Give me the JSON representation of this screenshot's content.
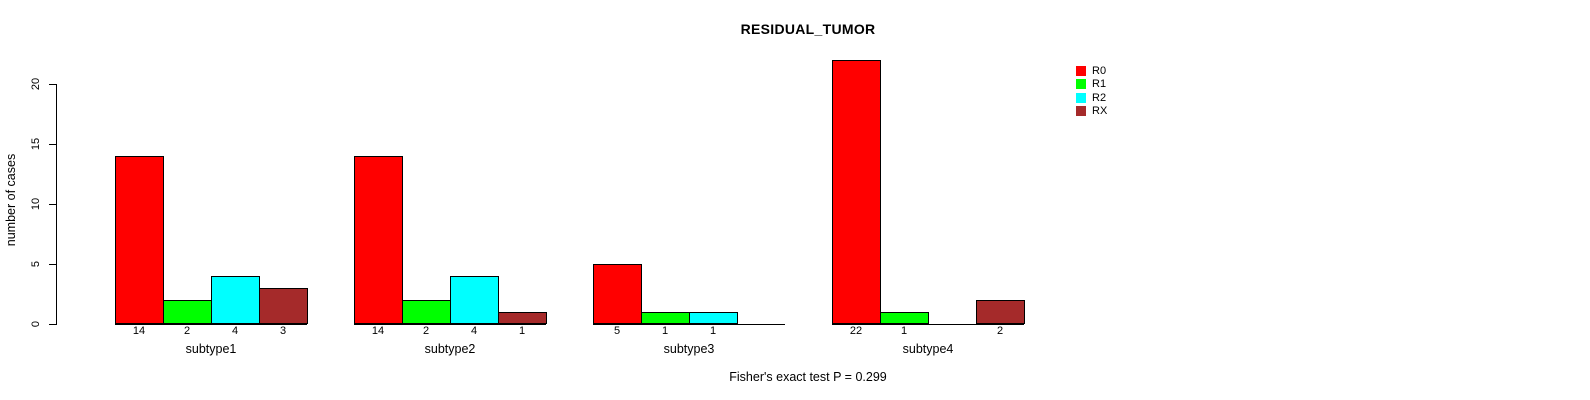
{
  "title": "RESIDUAL_TUMOR",
  "y_axis_title": "number of cases",
  "footer_note": "Fisher's exact test P = 0.299",
  "colors": {
    "R0": "#FF0000",
    "R1": "#00FF00",
    "R2": "#00FFFF",
    "RX": "#A52A2A",
    "axis": "#000000",
    "background": "#FFFFFF"
  },
  "legend": {
    "position": "top-right-inside",
    "items": [
      {
        "label": "R0",
        "color": "#FF0000"
      },
      {
        "label": "R1",
        "color": "#00FF00"
      },
      {
        "label": "R2",
        "color": "#00FFFF"
      },
      {
        "label": "RX",
        "color": "#A52A2A"
      }
    ]
  },
  "chart_data": {
    "type": "bar",
    "title": "RESIDUAL_TUMOR",
    "xlabel": "",
    "ylabel": "number of cases",
    "categories": [
      "subtype1",
      "subtype2",
      "subtype3",
      "subtype4"
    ],
    "series": [
      {
        "name": "R0",
        "color": "#FF0000",
        "values": [
          14,
          14,
          5,
          22
        ]
      },
      {
        "name": "R1",
        "color": "#00FF00",
        "values": [
          2,
          2,
          1,
          1
        ]
      },
      {
        "name": "R2",
        "color": "#00FFFF",
        "values": [
          4,
          4,
          1,
          0
        ]
      },
      {
        "name": "RX",
        "color": "#A52A2A",
        "values": [
          3,
          1,
          0,
          2
        ]
      }
    ],
    "bar_value_labels_shown": true,
    "zero_values_hidden": true,
    "ylim": [
      0,
      22
    ],
    "yticks": [
      0,
      5,
      10,
      15,
      20
    ],
    "grid": false,
    "legend_position": "top-right-inside",
    "annotation": "Fisher's exact test P = 0.299"
  }
}
